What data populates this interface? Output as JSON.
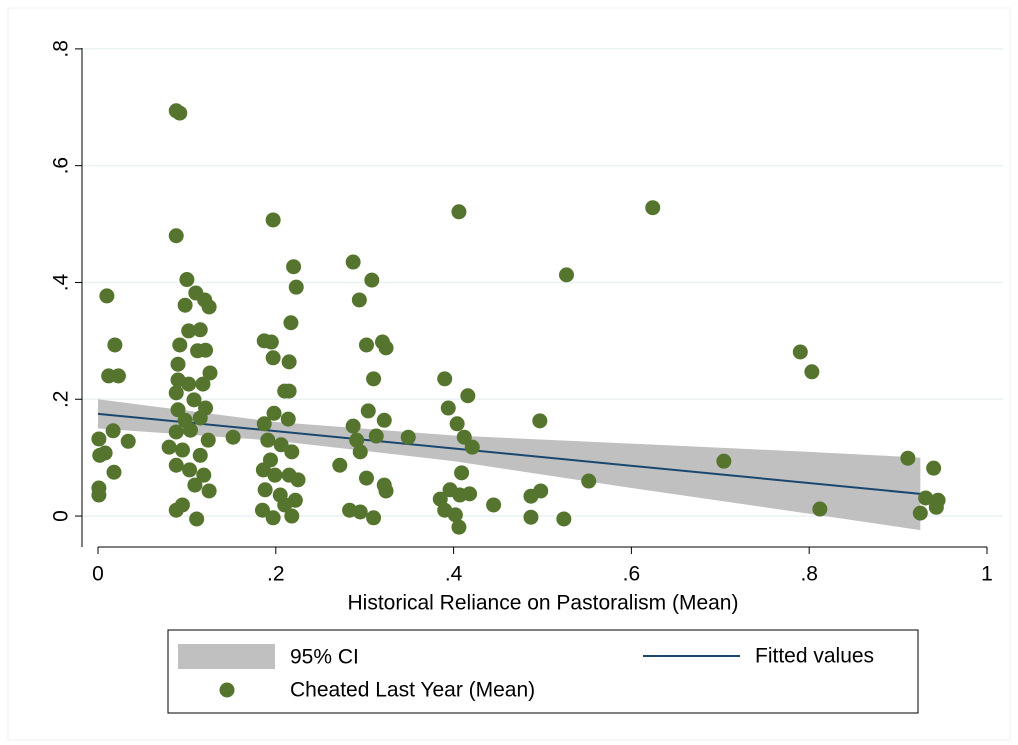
{
  "chart_data": {
    "type": "scatter",
    "xlabel": "Historical Reliance on Pastoralism (Mean)",
    "xlim": [
      -0.018,
      1.018
    ],
    "ylim": [
      -0.053,
      0.87
    ],
    "xticks": [
      0,
      {
        "value": 0.2,
        "label": ".2"
      },
      {
        "value": 0.4,
        "label": ".4"
      },
      {
        "value": 0.6,
        "label": ".6"
      },
      {
        "value": 0.8,
        "label": ".8"
      },
      1
    ],
    "yticks": [
      0,
      {
        "value": 0.2,
        "label": ".2"
      },
      {
        "value": 0.4,
        "label": ".4"
      },
      {
        "value": 0.6,
        "label": ".6"
      },
      {
        "value": 0.8,
        "label": ".8"
      }
    ],
    "grid": true,
    "series": [
      {
        "name": "95% CI",
        "type": "band",
        "color": "#c0c0c0",
        "x": [
          0,
          0.2,
          0.4,
          0.6,
          0.8,
          0.925
        ],
        "upper": [
          0.2,
          0.161,
          0.138,
          0.124,
          0.11,
          0.1
        ],
        "lower": [
          0.15,
          0.129,
          0.094,
          0.048,
          0.004,
          -0.024
        ]
      },
      {
        "name": "Fitted values",
        "type": "line",
        "color": "#1a476f",
        "x": [
          0,
          0.925
        ],
        "values": [
          0.175,
          0.038
        ]
      },
      {
        "name": "Cheated Last Year (Mean)",
        "type": "scatter",
        "color": "#55752f",
        "x": [
          0.092,
          0.088,
          0.088,
          0.1,
          0.01,
          0.019,
          0.012,
          0.023,
          0.001,
          0.034,
          0.002,
          0.008,
          0.017,
          0.018,
          0.001,
          0.001,
          0.098,
          0.11,
          0.12,
          0.125,
          0.102,
          0.115,
          0.092,
          0.121,
          0.112,
          0.09,
          0.126,
          0.09,
          0.102,
          0.118,
          0.088,
          0.108,
          0.121,
          0.09,
          0.098,
          0.115,
          0.088,
          0.104,
          0.124,
          0.08,
          0.095,
          0.115,
          0.088,
          0.103,
          0.119,
          0.109,
          0.125,
          0.095,
          0.088,
          0.111,
          0.152,
          0.197,
          0.22,
          0.223,
          0.217,
          0.187,
          0.195,
          0.197,
          0.215,
          0.21,
          0.215,
          0.187,
          0.198,
          0.214,
          0.191,
          0.206,
          0.218,
          0.186,
          0.199,
          0.215,
          0.225,
          0.188,
          0.205,
          0.222,
          0.185,
          0.197,
          0.218,
          0.21,
          0.194,
          0.287,
          0.308,
          0.294,
          0.302,
          0.32,
          0.324,
          0.31,
          0.287,
          0.304,
          0.322,
          0.313,
          0.291,
          0.295,
          0.272,
          0.302,
          0.322,
          0.324,
          0.283,
          0.295,
          0.31,
          0.349,
          0.406,
          0.39,
          0.394,
          0.416,
          0.404,
          0.412,
          0.421,
          0.409,
          0.385,
          0.396,
          0.407,
          0.418,
          0.39,
          0.402,
          0.406,
          0.445,
          0.487,
          0.498,
          0.487,
          0.497,
          0.527,
          0.624,
          0.552,
          0.524,
          0.704,
          0.79,
          0.803,
          0.812,
          0.911,
          0.94,
          0.931,
          0.945,
          0.925,
          0.943
        ],
        "values": [
          0.69,
          0.694,
          0.48,
          0.405,
          0.377,
          0.293,
          0.24,
          0.24,
          0.132,
          0.128,
          0.104,
          0.108,
          0.146,
          0.075,
          0.048,
          0.036,
          0.361,
          0.382,
          0.37,
          0.358,
          0.317,
          0.319,
          0.293,
          0.284,
          0.283,
          0.26,
          0.245,
          0.233,
          0.226,
          0.226,
          0.211,
          0.199,
          0.185,
          0.182,
          0.164,
          0.168,
          0.144,
          0.147,
          0.13,
          0.118,
          0.113,
          0.104,
          0.087,
          0.079,
          0.07,
          0.053,
          0.043,
          0.019,
          0.01,
          -0.005,
          0.135,
          0.507,
          0.427,
          0.392,
          0.331,
          0.3,
          0.298,
          0.271,
          0.264,
          0.214,
          0.214,
          0.158,
          0.176,
          0.166,
          0.13,
          0.122,
          0.11,
          0.079,
          0.07,
          0.07,
          0.062,
          0.045,
          0.036,
          0.027,
          0.01,
          -0.003,
          0.0,
          0.019,
          0.096,
          0.435,
          0.404,
          0.37,
          0.293,
          0.298,
          0.288,
          0.235,
          0.154,
          0.18,
          0.164,
          0.137,
          0.13,
          0.11,
          0.087,
          0.065,
          0.053,
          0.043,
          0.01,
          0.007,
          -0.003,
          0.135,
          0.521,
          0.235,
          0.185,
          0.206,
          0.158,
          0.135,
          0.118,
          0.074,
          0.029,
          0.045,
          0.036,
          0.038,
          0.01,
          0.002,
          -0.019,
          0.019,
          0.034,
          0.043,
          -0.002,
          0.163,
          0.413,
          0.528,
          0.06,
          -0.005,
          0.094,
          0.281,
          0.247,
          0.012,
          0.099,
          0.082,
          0.031,
          0.027,
          0.005,
          0.015
        ]
      }
    ]
  }
}
